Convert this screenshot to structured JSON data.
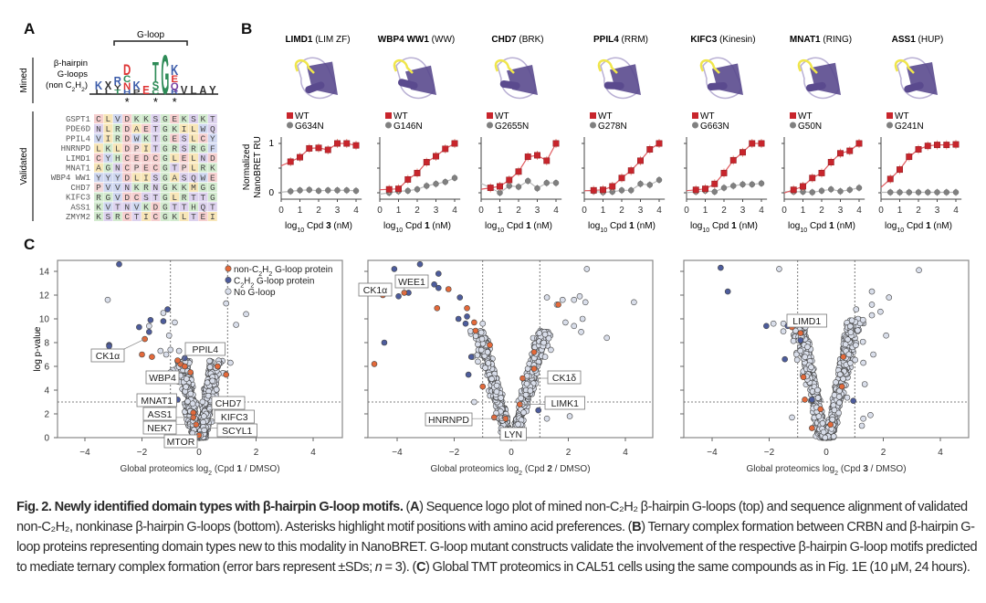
{
  "panel_labels": {
    "a": "A",
    "b": "B",
    "c": "C"
  },
  "panel_a": {
    "bracket_label": "G-loop",
    "mined_label": "Mined",
    "validated_label": "Validated",
    "logo_labels": [
      "β-hairpin",
      "G-loops",
      "(non C2H2)"
    ],
    "logo_columns": [
      [
        {
          "ch": "L",
          "color": "#333"
        },
        {
          "ch": "K",
          "color": "#3b5ba9"
        }
      ],
      [
        {
          "ch": "L",
          "color": "#333"
        },
        {
          "ch": "X",
          "color": "#333"
        }
      ],
      [
        {
          "ch": "T",
          "color": "#2e8b57"
        },
        {
          "ch": "Y",
          "color": "#333"
        },
        {
          "ch": "R",
          "color": "#3b5ba9"
        }
      ],
      [
        {
          "ch": "H",
          "color": "#3b5ba9"
        },
        {
          "ch": "N",
          "color": "#d33"
        },
        {
          "ch": "C",
          "color": "#2e8b57"
        },
        {
          "ch": "D",
          "color": "#d33"
        }
      ],
      [
        {
          "ch": "P",
          "color": "#333"
        },
        {
          "ch": "K",
          "color": "#3b5ba9"
        }
      ],
      [
        {
          "ch": "E",
          "color": "#d33"
        }
      ],
      [
        {
          "ch": "C",
          "color": "#2e8b57"
        },
        {
          "ch": "S",
          "color": "#2e8b57"
        },
        {
          "ch": "T",
          "color": "#2e8b57"
        }
      ],
      [
        {
          "ch": "G",
          "color": "#2e8b57"
        }
      ],
      [
        {
          "ch": "R",
          "color": "#3b5ba9"
        },
        {
          "ch": "Q",
          "color": "#7a3fa0"
        },
        {
          "ch": "E",
          "color": "#d33"
        },
        {
          "ch": "K",
          "color": "#3b5ba9"
        }
      ],
      [
        {
          "ch": "V",
          "color": "#333"
        }
      ],
      [
        {
          "ch": "L",
          "color": "#333"
        }
      ],
      [
        {
          "ch": "A",
          "color": "#333"
        }
      ],
      [
        {
          "ch": "Y",
          "color": "#333"
        }
      ]
    ],
    "asterisk": "*",
    "asterisk_columns": [
      3,
      6,
      8
    ],
    "alignment": [
      {
        "name": "GSPT1",
        "seq": "CLVDKKSGEKSKT"
      },
      {
        "name": "PDE6D",
        "seq": "NLRDAETGKILWQ"
      },
      {
        "name": "PPIL4",
        "seq": "VIRDWKTGESLCY"
      },
      {
        "name": "HNRNPD",
        "seq": "LKLDPITGRSRGF"
      },
      {
        "name": "LIMD1",
        "seq": "CYHCEDCGLELND"
      },
      {
        "name": "MNAT1",
        "seq": "AGNCPECGTPLRK"
      },
      {
        "name": "WBP4 WW1",
        "seq": "YYYDLISGASQWE"
      },
      {
        "name": "CHD7",
        "seq": "PVVNKRNGKKMGG"
      },
      {
        "name": "KIFC3",
        "seq": "RGVDCSTGLRTTG"
      },
      {
        "name": "ASS1",
        "seq": "KVTNVKDGTTHQT"
      },
      {
        "name": "ZMYM2",
        "seq": "KSRCTICGKLTEI"
      }
    ]
  },
  "panel_b": {
    "ylabel": [
      "Normalized",
      "NanoBRET RU"
    ],
    "x_ticks": [
      "0",
      "1",
      "2",
      "3",
      "4"
    ],
    "y_ticks": [
      "0",
      "1"
    ],
    "xlabel_prefix": "log",
    "xlabel_sub": "10",
    "xlabel_cpd": "Cpd",
    "xlabel_unit": "(nM)",
    "wt_label": "WT",
    "colors": {
      "wt": "#c8252c",
      "mutant": "#808080",
      "structure": "#5a4a8e",
      "loop": "#f0e64a"
    },
    "x_values": [
      0.5,
      1,
      1.5,
      2,
      2.5,
      3,
      3.5,
      4
    ],
    "chart_data": [
      {
        "type": "line",
        "gene": "LIMD1",
        "domain": "(LIM ZF)",
        "mutant": "G634N",
        "compound": "3",
        "wt": [
          0.63,
          0.72,
          0.9,
          0.91,
          0.87,
          1.0,
          1.0,
          0.96
        ],
        "mut": [
          0.03,
          0.05,
          0.06,
          0.04,
          0.05,
          0.05,
          0.05,
          0.04
        ],
        "ylim": [
          0,
          1
        ],
        "xlim": [
          0,
          4
        ]
      },
      {
        "type": "line",
        "gene": "WBP4 WW1",
        "domain": "(WW)",
        "mutant": "G146N",
        "compound": "1",
        "wt": [
          0.07,
          0.08,
          0.27,
          0.4,
          0.62,
          0.74,
          0.89,
          1.0
        ],
        "mut": [
          0.0,
          0.03,
          0.04,
          0.07,
          0.14,
          0.18,
          0.22,
          0.3
        ],
        "ylim": [
          0,
          1
        ],
        "xlim": [
          0,
          4
        ]
      },
      {
        "type": "line",
        "gene": "CHD7",
        "domain": "(BRK)",
        "mutant": "G2655N",
        "compound": "1",
        "wt": [
          0.1,
          0.13,
          0.26,
          0.43,
          0.73,
          0.76,
          0.65,
          1.0
        ],
        "mut": [
          0.1,
          0.0,
          0.14,
          0.12,
          0.24,
          0.09,
          0.2,
          0.2
        ],
        "ylim": [
          0,
          1
        ],
        "xlim": [
          0,
          4
        ]
      },
      {
        "type": "line",
        "gene": "PPIL4",
        "domain": "(RRM)",
        "mutant": "G278N",
        "compound": "1",
        "wt": [
          0.05,
          0.06,
          0.13,
          0.3,
          0.45,
          0.65,
          0.88,
          1.0
        ],
        "mut": [
          0.03,
          0.01,
          0.02,
          0.05,
          0.05,
          0.18,
          0.16,
          0.26
        ],
        "ylim": [
          0,
          1
        ],
        "xlim": [
          0,
          4
        ]
      },
      {
        "type": "line",
        "gene": "KIFC3",
        "domain": "(Kinesin)",
        "mutant": "G663N",
        "compound": "1",
        "wt": [
          0.06,
          0.08,
          0.18,
          0.4,
          0.66,
          0.82,
          1.0,
          1.0
        ],
        "mut": [
          0.02,
          0.04,
          0.02,
          0.1,
          0.14,
          0.17,
          0.17,
          0.19
        ],
        "ylim": [
          0,
          1
        ],
        "xlim": [
          0,
          4
        ]
      },
      {
        "type": "line",
        "gene": "MNAT1",
        "domain": "(RING)",
        "mutant": "G50N",
        "compound": "1",
        "wt": [
          0.06,
          0.13,
          0.3,
          0.4,
          0.62,
          0.8,
          0.85,
          1.0
        ],
        "mut": [
          0.02,
          0.02,
          0.01,
          0.04,
          0.07,
          0.03,
          0.06,
          0.1
        ],
        "ylim": [
          0,
          1
        ],
        "xlim": [
          0,
          4
        ]
      },
      {
        "type": "line",
        "gene": "ASS1",
        "domain": "(HUP)",
        "mutant": "G241N",
        "compound": "1",
        "wt": [
          0.28,
          0.47,
          0.73,
          0.88,
          0.95,
          0.97,
          0.97,
          0.98
        ],
        "mut": [
          0.01,
          0.01,
          0.01,
          0.01,
          0.01,
          0.01,
          0.01,
          0.01
        ],
        "ylim": [
          0,
          1
        ],
        "xlim": [
          0,
          4
        ]
      }
    ]
  },
  "panel_c": {
    "ylabel": "log p-value",
    "y_ticks": [
      "0",
      "2",
      "4",
      "6",
      "8",
      "10",
      "12",
      "14"
    ],
    "x_ticks": [
      "−4",
      "−2",
      "0",
      "2",
      "4"
    ],
    "legend": [
      "non-C2H2 G-loop protein",
      "C2H2 G-loop protein",
      "No G-loop"
    ],
    "colors": {
      "non_c2h2": "#e3693a",
      "c2h2": "#4d5c9c",
      "none": "#d9deea"
    },
    "chart_data": [
      {
        "type": "scatter",
        "xlabel_prefix": "Global proteomics log",
        "xlabel_sub": "2",
        "xlabel_cpd": "(Cpd ",
        "compound": "1",
        "xlabel_tail": " / DMSO)",
        "xlim": [
          -5,
          5
        ],
        "ylim": [
          0,
          15
        ],
        "thresholds": {
          "x": [
            -1,
            1
          ],
          "y": 3
        },
        "labels": [
          {
            "text": "CK1α",
            "x": -1.9,
            "y": 8.3
          },
          {
            "text": "PPIL4",
            "x": -0.65,
            "y": 6.2
          },
          {
            "text": "WBP4",
            "x": -0.3,
            "y": 5.5
          },
          {
            "text": "MNAT1",
            "x": -1.05,
            "y": 1.9
          },
          {
            "text": "ASS1",
            "x": -0.2,
            "y": 1.7
          },
          {
            "text": "NEK7",
            "x": -0.1,
            "y": 1.1
          },
          {
            "text": "MTOR",
            "x": 0.0,
            "y": 0.2
          },
          {
            "text": "CHD7",
            "x": 0.25,
            "y": 2.2
          },
          {
            "text": "KIFC3",
            "x": 0.3,
            "y": 1.4
          },
          {
            "text": "SCYL1",
            "x": 0.15,
            "y": 0.8
          }
        ],
        "c2h2": [
          [
            -2.8,
            14.6
          ],
          [
            -1.1,
            10.8
          ],
          [
            -1.7,
            9.9
          ],
          [
            -1.25,
            9.8
          ],
          [
            -2.1,
            9.3
          ],
          [
            -1.75,
            8.9
          ],
          [
            -3.15,
            7.8
          ],
          [
            -3.15,
            7.7
          ],
          [
            -0.5,
            6.7
          ],
          [
            -0.75,
            3.2
          ]
        ],
        "non_c2h2": [
          [
            -1.9,
            8.3
          ],
          [
            -0.65,
            6.2
          ],
          [
            -0.5,
            6.0
          ],
          [
            -2.0,
            7.0
          ],
          [
            -1.65,
            6.8
          ],
          [
            -0.75,
            6.5
          ],
          [
            -0.3,
            5.5
          ],
          [
            0.65,
            6.0
          ],
          [
            0.95,
            5.3
          ],
          [
            -1.05,
            2.8
          ],
          [
            -0.2,
            2.1
          ],
          [
            -0.2,
            1.7
          ],
          [
            -0.1,
            1.1
          ],
          [
            0.0,
            0.2
          ]
        ],
        "no_gloop_outliers": [
          [
            -3.2,
            11.6
          ],
          [
            -1.25,
            10.5
          ],
          [
            -0.85,
            9.7
          ],
          [
            0.95,
            11.3
          ],
          [
            1.65,
            10.4
          ],
          [
            1.3,
            9.5
          ],
          [
            -1.75,
            9.4
          ],
          [
            -1.05,
            8.6
          ],
          [
            -1.35,
            7.3
          ],
          [
            -1.15,
            7.0
          ],
          [
            -1.0,
            7.4
          ],
          [
            -0.7,
            7.3
          ],
          [
            1.1,
            6.3
          ],
          [
            -1.0,
            5.5
          ]
        ]
      },
      {
        "type": "scatter",
        "xlabel_prefix": "Global proteomics log",
        "xlabel_sub": "2",
        "xlabel_cpd": "(Cpd ",
        "compound": "2",
        "xlabel_tail": " / DMSO)",
        "xlim": [
          -5,
          5
        ],
        "ylim": [
          0,
          15
        ],
        "thresholds": {
          "x": [
            -1,
            1
          ],
          "y": 3
        },
        "labels": [
          {
            "text": "CK1α",
            "x": -4.5,
            "y": 12.0
          },
          {
            "text": "WEE1",
            "x": -3.75,
            "y": 12.2
          },
          {
            "text": "CK1δ",
            "x": 0.4,
            "y": 5.0
          },
          {
            "text": "LIMK1",
            "x": 0.3,
            "y": 2.8
          },
          {
            "text": "HNRNPD",
            "x": -0.2,
            "y": 1.6
          },
          {
            "text": "LYN",
            "x": 0.0,
            "y": 0.3
          }
        ],
        "c2h2": [
          [
            -4.1,
            14.2
          ],
          [
            -3.2,
            14.6
          ],
          [
            -2.55,
            13.8
          ],
          [
            -2.7,
            12.9
          ],
          [
            -2.55,
            12.6
          ],
          [
            -3.95,
            11.9
          ],
          [
            -3.6,
            12.2
          ],
          [
            -1.8,
            11.8
          ],
          [
            -1.85,
            10.0
          ],
          [
            -1.55,
            10.2
          ],
          [
            -1.6,
            9.6
          ],
          [
            -4.45,
            8.0
          ],
          [
            -1.4,
            6.8
          ],
          [
            -1.5,
            5.3
          ],
          [
            0.95,
            2.3
          ]
        ],
        "non_c2h2": [
          [
            -4.5,
            12.0
          ],
          [
            -3.75,
            12.2
          ],
          [
            -2.2,
            12.5
          ],
          [
            -2.6,
            10.9
          ],
          [
            -1.55,
            10.9
          ],
          [
            -1.3,
            9.7
          ],
          [
            -1.25,
            9.0
          ],
          [
            -4.8,
            6.2
          ],
          [
            -0.75,
            7.8
          ],
          [
            0.4,
            5.0
          ],
          [
            0.3,
            2.8
          ],
          [
            -0.2,
            1.6
          ],
          [
            0.8,
            5.8
          ],
          [
            0.8,
            7.2
          ],
          [
            1.65,
            11.2
          ],
          [
            -1.0,
            4.3
          ],
          [
            -0.6,
            1.7
          ]
        ],
        "no_gloop_outliers": [
          [
            2.65,
            14.2
          ],
          [
            4.3,
            11.4
          ],
          [
            3.35,
            8.4
          ],
          [
            1.25,
            11.8
          ],
          [
            1.6,
            11.2
          ],
          [
            1.8,
            11.6
          ],
          [
            2.2,
            11.6
          ],
          [
            2.4,
            11.9
          ],
          [
            2.6,
            11.4
          ],
          [
            2.5,
            10.0
          ],
          [
            1.9,
            9.7
          ],
          [
            2.2,
            9.4
          ],
          [
            2.45,
            8.9
          ],
          [
            1.25,
            1.6
          ],
          [
            2.05,
            1.8
          ],
          [
            -1.0,
            9.6
          ],
          [
            -1.35,
            6.8
          ],
          [
            -1.3,
            3.0
          ]
        ]
      },
      {
        "type": "scatter",
        "xlabel_prefix": "Global proteomics log",
        "xlabel_sub": "2",
        "xlabel_cpd": "(Cpd ",
        "compound": "3",
        "xlabel_tail": " / DMSO)",
        "xlim": [
          -5,
          5
        ],
        "ylim": [
          0,
          15
        ],
        "thresholds": {
          "x": [
            -1,
            1
          ],
          "y": 3
        },
        "labels": [
          {
            "text": "LIMD1",
            "x": -1.2,
            "y": 9.3
          }
        ],
        "c2h2": [
          [
            -3.7,
            14.3
          ],
          [
            -3.45,
            12.3
          ],
          [
            -2.1,
            9.4
          ],
          [
            -1.35,
            9.4
          ],
          [
            -0.9,
            8.2
          ],
          [
            -1.45,
            6.6
          ],
          [
            -0.5,
            3.2
          ],
          [
            0.95,
            3.1
          ]
        ],
        "non_c2h2": [
          [
            -1.2,
            9.3
          ],
          [
            -0.9,
            8.8
          ],
          [
            -0.8,
            5.1
          ],
          [
            -0.75,
            3.2
          ],
          [
            -0.2,
            2.4
          ],
          [
            0.55,
            4.3
          ],
          [
            0.6,
            6.8
          ],
          [
            0.15,
            1.1
          ],
          [
            -0.5,
            0.8
          ]
        ],
        "no_gloop_outliers": [
          [
            -1.65,
            14.2
          ],
          [
            3.25,
            14.1
          ],
          [
            1.6,
            12.3
          ],
          [
            2.2,
            11.8
          ],
          [
            1.6,
            11.2
          ],
          [
            1.05,
            10.8
          ],
          [
            1.9,
            10.6
          ],
          [
            1.6,
            10.3
          ],
          [
            -1.85,
            9.6
          ],
          [
            -1.5,
            9.6
          ],
          [
            2.1,
            8.6
          ],
          [
            1.65,
            7.0
          ],
          [
            1.3,
            6.3
          ],
          [
            1.35,
            4.5
          ],
          [
            1.3,
            1.6
          ],
          [
            1.55,
            1.9
          ],
          [
            -1.2,
            1.7
          ],
          [
            1.25,
            1.0
          ]
        ]
      }
    ]
  },
  "caption": {
    "title": "Fig. 2. Newly identified domain types with β-hairpin G-loop motifs.",
    "open_a": " (",
    "a": "A",
    "text_a": ") Sequence logo plot of mined non-C₂H₂ β-hairpin G-loops (top) and sequence alignment of validated non-C₂H₂, nonkinase β-hairpin G-loops (bottom). Asterisks highlight motif positions with amino acid preferences. (",
    "b": "B",
    "text_b": ") Ternary complex formation between CRBN and β-hairpin G-loop proteins representing domain types new to this modality in NanoBRET. G-loop mutant constructs validate the involvement of the respective β-hairpin G-loop motifs predicted to mediate ternary complex formation (error bars represent ±SDs; ",
    "n": "n",
    "text_n": " = 3). (",
    "c": "C",
    "text_c": ") Global TMT proteomics in CAL51 cells using the same compounds as in Fig. 1E (10 μM, 24 hours)."
  }
}
